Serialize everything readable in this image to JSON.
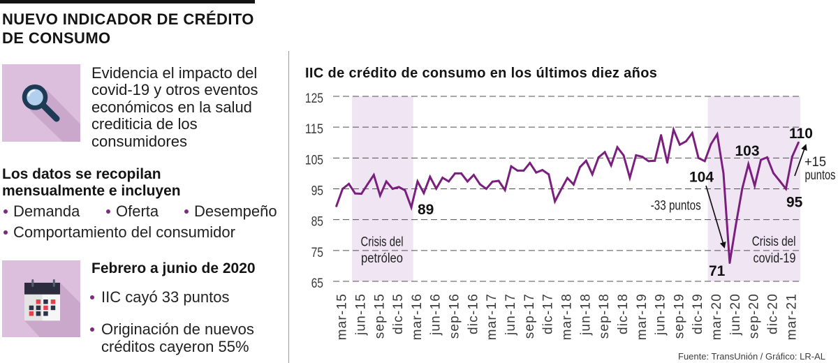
{
  "header": {
    "title_lines": [
      "NUEVO INDICADOR DE CRÉDITO",
      "DE CONSUMO"
    ]
  },
  "left_panel": {
    "intro": {
      "icon": "magnifier-icon",
      "lines": [
        "Evidencia el impacto del",
        "covid-19 y otros eventos",
        "económicos en la salud",
        "crediticia de los",
        "consumidores"
      ]
    },
    "data_collection": {
      "heading_lines": [
        "Los datos se recopilan",
        "mensualmente e incluyen"
      ],
      "items": [
        "Demanda",
        "Oferta",
        "Desempeño",
        "Comportamiento del consumidor"
      ]
    },
    "period": {
      "icon": "calendar-icon",
      "heading": "Febrero a junio de 2020",
      "bullets": [
        {
          "lines": [
            "IIC cayó 33 puntos"
          ]
        },
        {
          "lines": [
            "Originación de nuevos",
            "créditos cayeron 55%"
          ]
        }
      ]
    }
  },
  "colors": {
    "series_line": "#7b1f7e",
    "shaded_region": "#efe5f3",
    "gridline": "#4f4f4f",
    "bullet": "#7b2a80",
    "icon_background": "#dbbfdc"
  },
  "chart_data": {
    "type": "line",
    "title": "IIC de crédito de consumo en los últimos diez años",
    "xlabel": "",
    "ylabel": "",
    "ylim": [
      65,
      125
    ],
    "yticks": [
      125,
      115,
      105,
      95,
      85,
      75,
      65
    ],
    "grid": true,
    "grid_style": "dashed horizontal",
    "legend": "none",
    "xtick_labels": [
      "mar-15",
      "jun-15",
      "sep-15",
      "dic-15",
      "mar-16",
      "jun-16",
      "sep-16",
      "dic-16",
      "mar-17",
      "jun-17",
      "sep-17",
      "dic-17",
      "mar-18",
      "jun-18",
      "sep-18",
      "dic-18",
      "mar-19",
      "jun-19",
      "sep-19",
      "dic-19",
      "mar-20",
      "jun-20",
      "sep-20",
      "dic-20",
      "mar-21"
    ],
    "x": [
      "feb-15",
      "mar-15",
      "abr-15",
      "may-15",
      "jun-15",
      "jul-15",
      "ago-15",
      "sep-15",
      "oct-15",
      "nov-15",
      "dic-15",
      "ene-16",
      "feb-16",
      "mar-16",
      "abr-16",
      "may-16",
      "jun-16",
      "jul-16",
      "ago-16",
      "sep-16",
      "oct-16",
      "nov-16",
      "dic-16",
      "ene-17",
      "feb-17",
      "mar-17",
      "abr-17",
      "may-17",
      "jun-17",
      "jul-17",
      "ago-17",
      "sep-17",
      "oct-17",
      "nov-17",
      "dic-17",
      "ene-18",
      "feb-18",
      "mar-18",
      "abr-18",
      "may-18",
      "jun-18",
      "jul-18",
      "ago-18",
      "sep-18",
      "oct-18",
      "nov-18",
      "dic-18",
      "ene-19",
      "feb-19",
      "mar-19",
      "abr-19",
      "may-19",
      "jun-19",
      "jul-19",
      "ago-19",
      "sep-19",
      "oct-19",
      "nov-19",
      "dic-19",
      "ene-20",
      "feb-20",
      "mar-20",
      "abr-20",
      "may-20",
      "jun-20",
      "jul-20",
      "ago-20",
      "sep-20",
      "oct-20",
      "nov-20",
      "dic-20",
      "ene-21",
      "feb-21",
      "mar-21",
      "abr-21"
    ],
    "series": [
      {
        "name": "IIC de crédito de consumo",
        "values": [
          89.4,
          95.0,
          96.6,
          93.5,
          93.4,
          96.5,
          99.5,
          92.8,
          97.4,
          95.0,
          95.6,
          94.5,
          89.0,
          97.4,
          93.6,
          98.9,
          95.1,
          98.6,
          97.4,
          100.0,
          100.0,
          97.4,
          99.5,
          96.5,
          95.0,
          97.3,
          97.6,
          94.6,
          102.3,
          100.9,
          100.9,
          103.4,
          100.3,
          101.1,
          99.7,
          90.9,
          94.8,
          98.5,
          96.4,
          102.0,
          104.1,
          99.7,
          105.2,
          106.9,
          102.6,
          108.5,
          105.9,
          98.6,
          105.9,
          105.4,
          104.0,
          104.1,
          112.4,
          103.5,
          114.2,
          109.3,
          110.4,
          113.1,
          105.0,
          104.0,
          109.5,
          112.7,
          100.0,
          71.0,
          83.5,
          95.0,
          103.0,
          96.0,
          104.4,
          105.2,
          100.1,
          97.6,
          95.0,
          105.4,
          110.0
        ]
      }
    ],
    "shaded_regions": [
      {
        "label_lines": [
          "Crisis del",
          "petróleo"
        ],
        "from": "abr-15",
        "to": "feb-16"
      },
      {
        "label_lines": [
          "Crisis del",
          "covid-19"
        ],
        "from": "ene-20",
        "to": "abr-21"
      }
    ],
    "annotations": [
      {
        "text": "89",
        "x": "feb-16",
        "value": 89
      },
      {
        "text": "104",
        "x": "ene-20",
        "value": 104
      },
      {
        "text": "71",
        "x": "may-20",
        "value": 71
      },
      {
        "text": "103",
        "x": "ago-20",
        "value": 103
      },
      {
        "text": "95",
        "x": "feb-21",
        "value": 95
      },
      {
        "text": "110",
        "x": "abr-21",
        "value": 110
      }
    ],
    "change_callouts": [
      {
        "lines": [
          "-33 puntos"
        ],
        "from": "ene-20",
        "to": "may-20"
      },
      {
        "lines": [
          "+15",
          "puntos"
        ],
        "from": "feb-21",
        "to": "abr-21"
      }
    ]
  },
  "source": "Fuente: TransUnión / Gráfico: LR-AL"
}
